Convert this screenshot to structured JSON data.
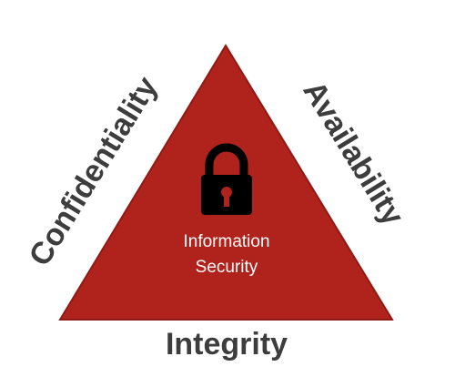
{
  "diagram": {
    "sides": {
      "left": "Confidentiality",
      "right": "Availability",
      "bottom": "Integrity"
    },
    "center": {
      "line1": "Information",
      "line2": "Security"
    },
    "icon": "padlock-icon"
  },
  "colors": {
    "triangle_fill": "#b0231c",
    "triangle_stroke": "#8d1a14",
    "side_text": "#3d3d3d",
    "center_text": "#ffffff",
    "lock": "#000000"
  }
}
